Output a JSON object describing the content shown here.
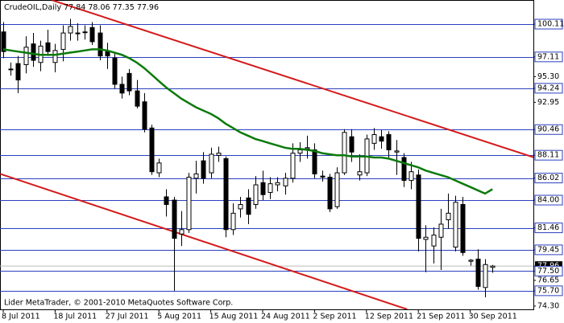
{
  "chart_data": {
    "type": "candlestick",
    "title": "CrudeOIL,Daily",
    "credit": "Lider MetaTrader, © 2001-2010 MetaQuotes Software Corp.",
    "categories": [
      "8 Jul 2011",
      null,
      null,
      null,
      null,
      null,
      null,
      "18 Jul 2011",
      null,
      null,
      null,
      null,
      null,
      null,
      "27 Jul 2011",
      null,
      null,
      null,
      null,
      null,
      null,
      "5 Aug 2011",
      null,
      null,
      null,
      null,
      null,
      null,
      "15 Aug 2011",
      null,
      null,
      null,
      null,
      null,
      null,
      "24 Aug 2011",
      null,
      null,
      null,
      null,
      null,
      null,
      "2 Sep 2011",
      null,
      null,
      null,
      null,
      null,
      null,
      "12 Sep 2011",
      null,
      null,
      null,
      null,
      null,
      null,
      "21 Sep 2011",
      null,
      null,
      null,
      null,
      null,
      null,
      "30 Sep 2011",
      null,
      null,
      null
    ],
    "open": [
      99.4,
      96.0,
      96.5,
      96.4,
      98.3,
      96.6,
      98.4,
      96.6,
      97.8,
      99.3,
      99.3,
      99.4,
      99.8,
      99.3,
      97.6,
      97.0,
      94.6,
      95.6,
      94.0,
      93.0,
      90.6,
      86.5,
      84.3,
      84.0,
      80.9,
      81.3,
      86.0,
      87.6,
      86.5,
      88.1,
      87.8,
      81.3,
      83.2,
      84.2,
      83.6,
      85.6,
      84.7,
      85.4,
      85.3,
      86.0,
      88.3,
      88.7,
      88.6,
      86.2,
      86.1,
      83.4,
      86.5,
      89.8,
      86.3,
      86.5,
      89.2,
      89.8,
      90.0,
      88.4,
      87.9,
      85.8,
      86.3,
      80.4,
      79.8,
      80.6,
      82.2,
      79.7,
      83.6,
      78.4,
      78.6,
      76.0,
      77.84
    ],
    "high": [
      100.3,
      96.6,
      97.2,
      99.0,
      99.3,
      98.6,
      99.6,
      98.3,
      100.0,
      100.6,
      100.2,
      100.0,
      100.3,
      100.0,
      98.4,
      97.5,
      95.3,
      96.0,
      95.0,
      93.8,
      90.9,
      87.8,
      85.0,
      84.3,
      83.0,
      86.5,
      87.6,
      88.4,
      88.8,
      88.9,
      88.0,
      83.7,
      84.3,
      85.0,
      86.2,
      86.7,
      86.1,
      86.1,
      86.5,
      89.2,
      89.3,
      89.9,
      89.2,
      86.7,
      86.4,
      87.0,
      90.5,
      90.5,
      88.2,
      90.0,
      90.6,
      90.4,
      90.3,
      89.5,
      88.3,
      87.5,
      86.8,
      81.7,
      81.5,
      83.2,
      84.6,
      84.4,
      84.3,
      78.6,
      79.5,
      78.6,
      78.06
    ],
    "low": [
      97.0,
      95.4,
      93.8,
      95.6,
      96.2,
      95.8,
      97.2,
      95.7,
      96.7,
      98.6,
      98.6,
      98.7,
      98.2,
      96.8,
      96.0,
      94.2,
      93.3,
      93.6,
      92.4,
      90.2,
      86.3,
      86.1,
      82.5,
      75.7,
      79.8,
      81.0,
      84.6,
      85.5,
      86.0,
      87.5,
      80.6,
      80.8,
      82.4,
      81.8,
      83.2,
      84.0,
      84.1,
      84.8,
      84.5,
      85.6,
      87.5,
      87.8,
      86.0,
      85.7,
      82.9,
      83.2,
      86.3,
      87.5,
      85.8,
      86.2,
      88.6,
      88.7,
      87.8,
      86.3,
      85.2,
      85.0,
      79.3,
      77.4,
      78.2,
      77.6,
      81.4,
      79.3,
      78.9,
      78.0,
      75.8,
      75.1,
      77.35
    ],
    "close": [
      97.6,
      96.0,
      95.0,
      98.0,
      96.8,
      98.1,
      97.6,
      97.7,
      99.3,
      99.9,
      99.3,
      99.4,
      98.5,
      97.2,
      97.2,
      94.6,
      93.8,
      94.0,
      92.6,
      90.5,
      86.6,
      87.4,
      83.6,
      80.5,
      81.3,
      86.1,
      86.4,
      86.0,
      88.2,
      88.3,
      81.3,
      82.8,
      83.6,
      82.7,
      85.4,
      84.5,
      85.5,
      85.6,
      86.0,
      88.3,
      88.6,
      88.8,
      86.4,
      86.1,
      83.2,
      86.5,
      90.2,
      88.4,
      86.6,
      89.6,
      90.0,
      89.4,
      88.6,
      88.5,
      85.8,
      86.6,
      80.5,
      80.6,
      80.8,
      81.8,
      82.8,
      83.8,
      79.2,
      78.5,
      76.1,
      78.1,
      77.96
    ],
    "up_color": "#ffffff",
    "down_color": "#000000",
    "moving_average": {
      "color": "#0b7a0b",
      "values": [
        97.8,
        97.7,
        97.6,
        97.5,
        97.4,
        97.3,
        97.3,
        97.3,
        97.4,
        97.5,
        97.6,
        97.7,
        97.8,
        97.8,
        97.7,
        97.5,
        97.3,
        97.0,
        96.6,
        96.1,
        95.5,
        94.9,
        94.3,
        93.8,
        93.3,
        92.9,
        92.5,
        92.2,
        91.9,
        91.5,
        91.0,
        90.6,
        90.2,
        89.9,
        89.6,
        89.4,
        89.2,
        89.0,
        88.8,
        88.7,
        88.7,
        88.6,
        88.5,
        88.3,
        88.2,
        88.1,
        88.1,
        88.0,
        88.0,
        88.0,
        87.9,
        87.9,
        87.8,
        87.6,
        87.4,
        87.2,
        87.0,
        86.7,
        86.5,
        86.3,
        86.1,
        85.8,
        85.5,
        85.2,
        84.9,
        84.6,
        85.0
      ]
    },
    "trendlines": [
      {
        "color": "#d41a1a",
        "start": [
          6.6,
          102.3
        ],
        "end": [
          75.7,
          87.0
        ]
      },
      {
        "color": "#d41a1a",
        "start": [
          -0.4,
          86.4
        ],
        "end": [
          54.5,
          74.0
        ]
      }
    ],
    "levels": [
      100.11,
      97.11,
      94.24,
      90.46,
      88.11,
      86.02,
      84.0,
      81.46,
      79.45,
      77.5,
      75.7
    ],
    "level_color": "#2a3fbf",
    "ylim": [
      74.0,
      102.32
    ],
    "yticks": [
      100.11,
      97.11,
      {
        "value": 95.3,
        "label": "95.30"
      },
      94.24,
      92.95,
      90.46,
      88.11,
      86.02,
      {
        "value": 84.0,
        "label": "84.00"
      },
      81.46,
      79.45,
      77.96,
      {
        "value": 77.5,
        "label": "77.50"
      },
      76.65,
      {
        "value": 75.7,
        "label": "75.70"
      },
      {
        "value": 74.3,
        "label": "74.30"
      }
    ]
  }
}
